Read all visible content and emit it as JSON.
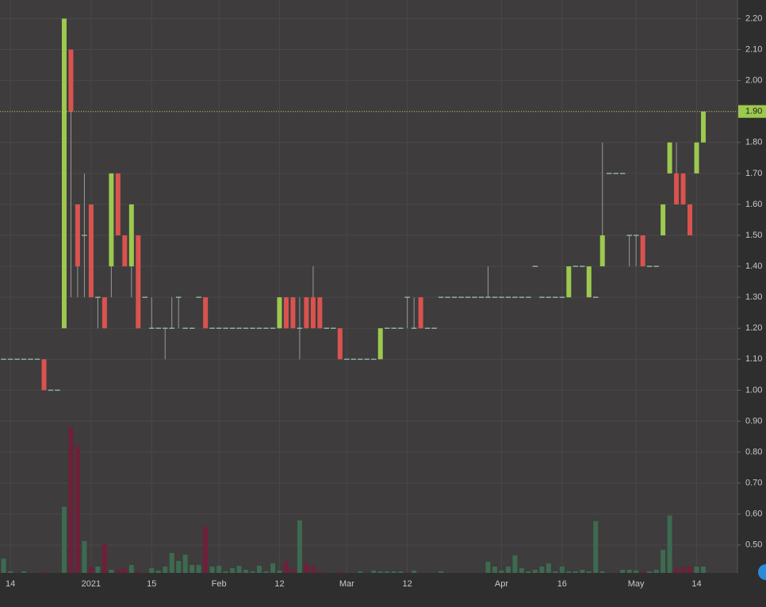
{
  "chart_data": {
    "type": "candlestick",
    "categories": [
      null,
      "14",
      null,
      null,
      null,
      null,
      null,
      null,
      null,
      null,
      null,
      null,
      null,
      "2021",
      null,
      null,
      null,
      null,
      null,
      null,
      null,
      null,
      "15",
      null,
      null,
      null,
      null,
      null,
      null,
      null,
      null,
      null,
      "Feb",
      null,
      null,
      null,
      null,
      null,
      null,
      null,
      null,
      "12",
      null,
      null,
      null,
      null,
      null,
      null,
      null,
      null,
      null,
      "Mar",
      null,
      null,
      null,
      null,
      null,
      null,
      null,
      null,
      "12",
      null,
      null,
      null,
      null,
      null,
      null,
      null,
      null,
      null,
      null,
      null,
      null,
      null,
      "Apr",
      null,
      null,
      null,
      null,
      null,
      null,
      null,
      null,
      "16",
      null,
      null,
      null,
      null,
      null,
      null,
      null,
      null,
      null,
      null,
      "May",
      null,
      null,
      null,
      null,
      null,
      null,
      null,
      null,
      "14",
      null
    ],
    "open": [
      1.1,
      1.1,
      1.1,
      1.1,
      1.1,
      1.1,
      1.1,
      1,
      1,
      1.2,
      2.1,
      1.6,
      1.5,
      1.6,
      1.3,
      1.3,
      1.4,
      1.7,
      1.5,
      1.4,
      1.5,
      1.3,
      1.2,
      1.2,
      1.2,
      1.2,
      1.3,
      1.2,
      1.2,
      1.3,
      1.3,
      1.2,
      1.2,
      1.2,
      1.2,
      1.2,
      1.2,
      1.2,
      1.2,
      1.2,
      1.2,
      1.2,
      1.3,
      1.3,
      1.2,
      1.3,
      1.3,
      1.3,
      1.2,
      1.2,
      1.2,
      1.1,
      1.1,
      1.1,
      1.1,
      1.1,
      1.1,
      1.2,
      1.2,
      1.2,
      1.3,
      1.2,
      1.3,
      1.2,
      1.2,
      1.3,
      1.3,
      1.3,
      1.3,
      1.3,
      1.3,
      1.3,
      1.3,
      1.3,
      1.3,
      1.3,
      1.3,
      1.3,
      1.3,
      1.4,
      1.3,
      1.3,
      1.3,
      1.3,
      1.3,
      1.4,
      1.4,
      1.3,
      1.3,
      1.4,
      1.7,
      1.7,
      1.7,
      1.5,
      1.5,
      1.5,
      1.4,
      1.4,
      1.5,
      1.7,
      1.7,
      1.7,
      1.6,
      1.7,
      1.8
    ],
    "high": [
      1.1,
      1.1,
      1.1,
      1.1,
      1.1,
      1.1,
      1.1,
      1,
      1,
      2.2,
      2.1,
      1.6,
      1.7,
      1.6,
      1.3,
      1.3,
      1.7,
      1.7,
      1.5,
      1.6,
      1.5,
      1.3,
      1.3,
      1.2,
      1.2,
      1.3,
      1.3,
      1.2,
      1.2,
      1.3,
      1.3,
      1.2,
      1.2,
      1.2,
      1.2,
      1.2,
      1.2,
      1.2,
      1.2,
      1.2,
      1.2,
      1.3,
      1.3,
      1.3,
      1.3,
      1.3,
      1.4,
      1.3,
      1.2,
      1.2,
      1.2,
      1.1,
      1.1,
      1.1,
      1.1,
      1.1,
      1.2,
      1.2,
      1.2,
      1.2,
      1.3,
      1.3,
      1.3,
      1.2,
      1.2,
      1.3,
      1.3,
      1.3,
      1.3,
      1.3,
      1.3,
      1.3,
      1.4,
      1.3,
      1.3,
      1.3,
      1.3,
      1.3,
      1.3,
      1.4,
      1.3,
      1.3,
      1.3,
      1.3,
      1.4,
      1.4,
      1.4,
      1.4,
      1.3,
      1.8,
      1.7,
      1.7,
      1.7,
      1.5,
      1.5,
      1.5,
      1.4,
      1.4,
      1.6,
      1.8,
      1.8,
      1.7,
      1.6,
      1.8,
      1.9
    ],
    "low": [
      1.1,
      1.1,
      1.1,
      1.1,
      1.1,
      1.1,
      1,
      1,
      1,
      1.2,
      1.3,
      1.3,
      1.3,
      1.3,
      1.2,
      1.2,
      1.3,
      1.5,
      1.4,
      1.3,
      1.2,
      1.3,
      1.2,
      1.2,
      1.1,
      1.2,
      1.2,
      1.2,
      1.2,
      1.3,
      1.2,
      1.2,
      1.2,
      1.2,
      1.2,
      1.2,
      1.2,
      1.2,
      1.2,
      1.2,
      1.2,
      1.2,
      1.2,
      1.2,
      1.1,
      1.2,
      1.2,
      1.2,
      1.2,
      1.2,
      1.1,
      1.1,
      1.1,
      1.1,
      1.1,
      1.1,
      1.1,
      1.2,
      1.2,
      1.2,
      1.2,
      1.2,
      1.2,
      1.2,
      1.2,
      1.3,
      1.3,
      1.3,
      1.3,
      1.3,
      1.3,
      1.3,
      1.3,
      1.3,
      1.3,
      1.3,
      1.3,
      1.3,
      1.3,
      1.4,
      1.3,
      1.3,
      1.3,
      1.3,
      1.3,
      1.4,
      1.4,
      1.3,
      1.3,
      1.4,
      1.7,
      1.7,
      1.7,
      1.4,
      1.4,
      1.4,
      1.4,
      1.4,
      1.5,
      1.7,
      1.6,
      1.6,
      1.5,
      1.7,
      1.8
    ],
    "close": [
      1.1,
      1.1,
      1.1,
      1.1,
      1.1,
      1.1,
      1,
      1,
      1,
      2.2,
      1.9,
      1.4,
      1.5,
      1.3,
      1.3,
      1.2,
      1.7,
      1.5,
      1.4,
      1.6,
      1.2,
      1.3,
      1.2,
      1.2,
      1.2,
      1.2,
      1.3,
      1.2,
      1.2,
      1.3,
      1.2,
      1.2,
      1.2,
      1.2,
      1.2,
      1.2,
      1.2,
      1.2,
      1.2,
      1.2,
      1.2,
      1.3,
      1.2,
      1.2,
      1.2,
      1.2,
      1.2,
      1.2,
      1.2,
      1.2,
      1.1,
      1.1,
      1.1,
      1.1,
      1.1,
      1.1,
      1.2,
      1.2,
      1.2,
      1.2,
      1.3,
      1.2,
      1.2,
      1.2,
      1.2,
      1.3,
      1.3,
      1.3,
      1.3,
      1.3,
      1.3,
      1.3,
      1.3,
      1.3,
      1.3,
      1.3,
      1.3,
      1.3,
      1.3,
      1.4,
      1.3,
      1.3,
      1.3,
      1.3,
      1.4,
      1.4,
      1.4,
      1.4,
      1.3,
      1.5,
      1.7,
      1.7,
      1.7,
      1.5,
      1.5,
      1.4,
      1.4,
      1.4,
      1.6,
      1.8,
      1.6,
      1.6,
      1.5,
      1.8,
      1.9
    ],
    "volume": [
      18,
      2,
      0,
      2,
      0,
      0,
      2,
      0,
      0,
      83,
      183,
      159,
      40,
      8,
      8,
      37,
      4,
      4,
      6,
      10,
      2,
      0,
      6,
      3,
      8,
      25,
      15,
      23,
      10,
      10,
      58,
      8,
      9,
      2,
      6,
      9,
      4,
      2,
      9,
      2,
      12,
      3,
      14,
      5,
      66,
      12,
      9,
      2,
      0,
      0,
      2,
      0,
      0,
      2,
      0,
      3,
      2,
      2,
      2,
      2,
      0,
      3,
      0,
      0,
      0,
      2,
      0,
      0,
      0,
      0,
      0,
      0,
      14,
      8,
      3,
      8,
      22,
      6,
      2,
      4,
      8,
      12,
      2,
      8,
      2,
      2,
      4,
      2,
      65,
      2,
      0,
      0,
      4,
      4,
      3,
      2,
      2,
      4,
      29,
      72,
      6,
      8,
      8,
      8,
      8
    ],
    "colors": {
      "up": "#9cc94e",
      "down": "#d9534f",
      "flat": "#8db49a",
      "volume_up": "#3d6a50",
      "volume_down": "#6e2039"
    },
    "ylim": [
      0.41,
      2.26
    ],
    "yticks": [
      {
        "value": 0.5,
        "label": "0.50"
      },
      {
        "value": 0.6,
        "label": "0.60"
      },
      {
        "value": 0.7,
        "label": "0.70"
      },
      {
        "value": 0.8,
        "label": "0.80"
      },
      {
        "value": 0.9,
        "label": "0.90"
      },
      {
        "value": 1,
        "label": "1.00"
      },
      {
        "value": 1.1,
        "label": "1.10"
      },
      {
        "value": 1.2,
        "label": "1.20"
      },
      {
        "value": 1.3,
        "label": "1.30"
      },
      {
        "value": 1.4,
        "label": "1.40"
      },
      {
        "value": 1.5,
        "label": "1.50"
      },
      {
        "value": 1.6,
        "label": "1.60"
      },
      {
        "value": 1.7,
        "label": "1.70"
      },
      {
        "value": 1.8,
        "label": "1.80"
      },
      {
        "value": 1.9,
        "label": "1.90"
      },
      {
        "value": 2,
        "label": "2.00"
      },
      {
        "value": 2.1,
        "label": "2.10"
      },
      {
        "value": 2.2,
        "label": "2.20"
      }
    ],
    "last_price": {
      "value": 1.9,
      "label": "1.90"
    },
    "grid": true
  }
}
